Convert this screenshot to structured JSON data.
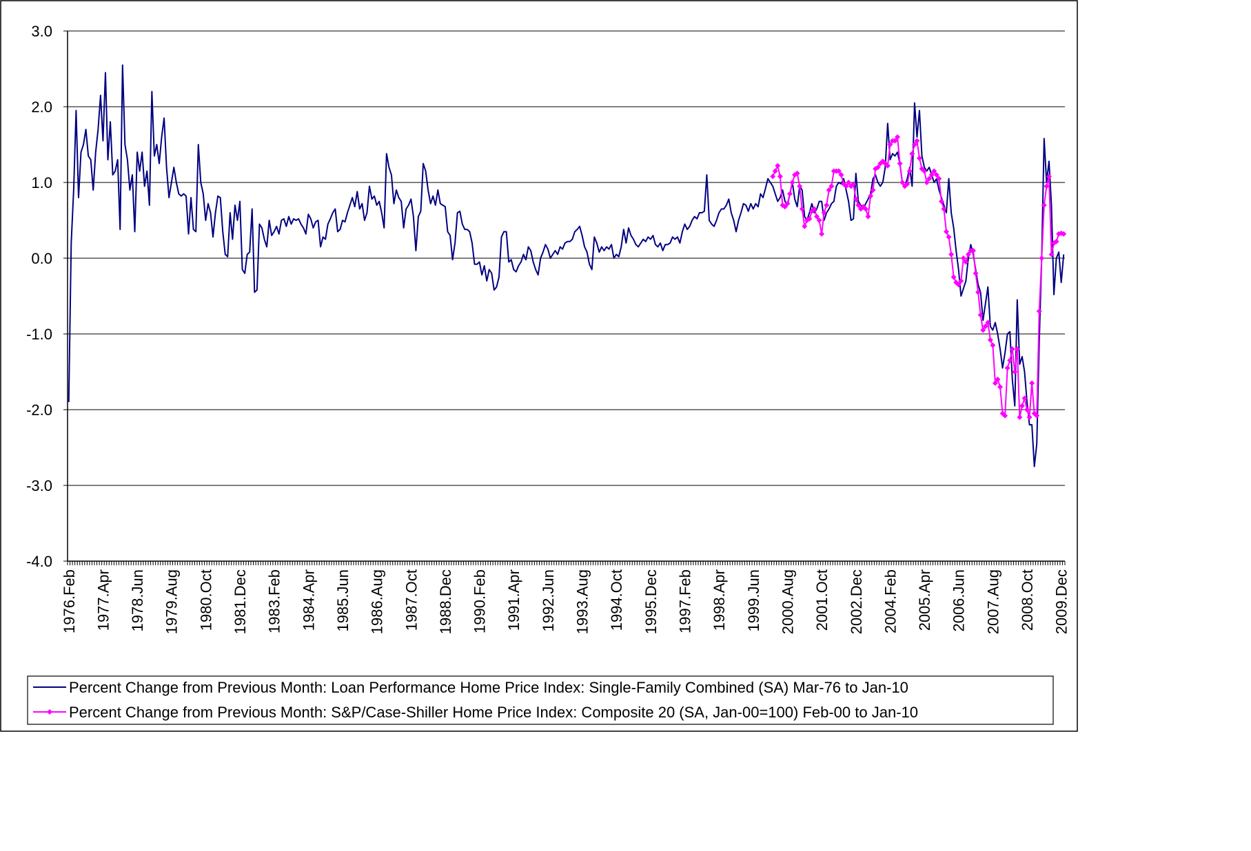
{
  "chart_data": {
    "type": "line",
    "categories": [
      "1976.Feb",
      null,
      null,
      null,
      null,
      null,
      null,
      null,
      null,
      null,
      null,
      null,
      null,
      null,
      "1977.Apr",
      null,
      null,
      null,
      null,
      null,
      null,
      null,
      null,
      null,
      null,
      null,
      null,
      null,
      "1978.Jun",
      null,
      null,
      null,
      null,
      null,
      null,
      null,
      null,
      null,
      null,
      null,
      null,
      null,
      "1979.Aug",
      null,
      null,
      null,
      null,
      null,
      null,
      null,
      null,
      null,
      null,
      null,
      null,
      null,
      "1980.Oct",
      null,
      null,
      null,
      null,
      null,
      null,
      null,
      null,
      null,
      null,
      null,
      null,
      null,
      "1981.Dec",
      null,
      null,
      null,
      null,
      null,
      null,
      null,
      null,
      null,
      null,
      null,
      null,
      null,
      "1983.Feb",
      null,
      null,
      null,
      null,
      null,
      null,
      null,
      null,
      null,
      null,
      null,
      null,
      null,
      "1984.Apr",
      null,
      null,
      null,
      null,
      null,
      null,
      null,
      null,
      null,
      null,
      null,
      null,
      null,
      "1985.Jun",
      null,
      null,
      null,
      null,
      null,
      null,
      null,
      null,
      null,
      null,
      null,
      null,
      null,
      "1986.Aug",
      null,
      null,
      null,
      null,
      null,
      null,
      null,
      null,
      null,
      null,
      null,
      null,
      null,
      "1987.Oct",
      null,
      null,
      null,
      null,
      null,
      null,
      null,
      null,
      null,
      null,
      null,
      null,
      null,
      "1988.Dec",
      null,
      null,
      null,
      null,
      null,
      null,
      null,
      null,
      null,
      null,
      null,
      null,
      null,
      "1990.Feb",
      null,
      null,
      null,
      null,
      null,
      null,
      null,
      null,
      null,
      null,
      null,
      null,
      null,
      "1991.Apr",
      null,
      null,
      null,
      null,
      null,
      null,
      null,
      null,
      null,
      null,
      null,
      null,
      null,
      "1992.Jun",
      null,
      null,
      null,
      null,
      null,
      null,
      null,
      null,
      null,
      null,
      null,
      null,
      null,
      "1993.Aug",
      null,
      null,
      null,
      null,
      null,
      null,
      null,
      null,
      null,
      null,
      null,
      null,
      null,
      "1994.Oct",
      null,
      null,
      null,
      null,
      null,
      null,
      null,
      null,
      null,
      null,
      null,
      null,
      null,
      "1995.Dec",
      null,
      null,
      null,
      null,
      null,
      null,
      null,
      null,
      null,
      null,
      null,
      null,
      null,
      "1997.Feb",
      null,
      null,
      null,
      null,
      null,
      null,
      null,
      null,
      null,
      null,
      null,
      null,
      null,
      "1998.Apr",
      null,
      null,
      null,
      null,
      null,
      null,
      null,
      null,
      null,
      null,
      null,
      null,
      null,
      "1999.Jun",
      null,
      null,
      null,
      null,
      null,
      null,
      null,
      null,
      null,
      null,
      null,
      null,
      null,
      "2000.Aug",
      null,
      null,
      null,
      null,
      null,
      null,
      null,
      null,
      null,
      null,
      null,
      null,
      null,
      "2001.Oct",
      null,
      null,
      null,
      null,
      null,
      null,
      null,
      null,
      null,
      null,
      null,
      null,
      null,
      "2002.Dec",
      null,
      null,
      null,
      null,
      null,
      null,
      null,
      null,
      null,
      null,
      null,
      null,
      null,
      "2004.Feb",
      null,
      null,
      null,
      null,
      null,
      null,
      null,
      null,
      null,
      null,
      null,
      null,
      null,
      "2005.Apr",
      null,
      null,
      null,
      null,
      null,
      null,
      null,
      null,
      null,
      null,
      null,
      null,
      null,
      "2006.Jun",
      null,
      null,
      null,
      null,
      null,
      null,
      null,
      null,
      null,
      null,
      null,
      null,
      null,
      "2007.Aug",
      null,
      null,
      null,
      null,
      null,
      null,
      null,
      null,
      null,
      null,
      null,
      null,
      null,
      "2008.Oct",
      null,
      null,
      null,
      null,
      null,
      null,
      null,
      null,
      null,
      null,
      null,
      null,
      null,
      "2009.Dec",
      null
    ],
    "series": [
      {
        "name": "Percent Change from Previous Month: Loan Performance Home Price Index: Single-Family Combined (SA) Mar-76 to Jan-10",
        "color": "#000080",
        "marker": false,
        "values": [
          -1.9,
          0.2,
          0.9,
          1.95,
          0.8,
          1.4,
          1.5,
          1.7,
          1.35,
          1.3,
          0.9,
          1.4,
          1.7,
          2.15,
          1.55,
          2.45,
          1.3,
          1.8,
          1.1,
          1.15,
          1.3,
          0.38,
          2.55,
          1.5,
          1.3,
          0.9,
          1.1,
          0.35,
          1.4,
          1.15,
          1.4,
          0.95,
          1.15,
          0.7,
          2.2,
          1.35,
          1.5,
          1.25,
          1.6,
          1.85,
          1.2,
          0.8,
          1.0,
          1.2,
          1.0,
          0.85,
          0.82,
          0.85,
          0.82,
          0.32,
          0.8,
          0.38,
          0.35,
          1.5,
          1.0,
          0.85,
          0.5,
          0.72,
          0.6,
          0.28,
          0.6,
          0.82,
          0.8,
          0.35,
          0.05,
          0.02,
          0.6,
          0.25,
          0.7,
          0.5,
          0.75,
          -0.15,
          -0.2,
          0.05,
          0.08,
          0.65,
          -0.45,
          -0.42,
          0.45,
          0.4,
          0.25,
          0.15,
          0.5,
          0.3,
          0.35,
          0.42,
          0.32,
          0.5,
          0.52,
          0.42,
          0.55,
          0.45,
          0.52,
          0.5,
          0.52,
          0.45,
          0.4,
          0.32,
          0.58,
          0.52,
          0.4,
          0.48,
          0.5,
          0.15,
          0.28,
          0.25,
          0.45,
          0.52,
          0.6,
          0.65,
          0.35,
          0.38,
          0.5,
          0.48,
          0.6,
          0.7,
          0.8,
          0.68,
          0.88,
          0.65,
          0.72,
          0.5,
          0.6,
          0.95,
          0.78,
          0.82,
          0.7,
          0.75,
          0.6,
          0.4,
          1.38,
          1.2,
          1.1,
          0.72,
          0.9,
          0.8,
          0.75,
          0.4,
          0.65,
          0.7,
          0.78,
          0.55,
          0.1,
          0.55,
          0.62,
          1.25,
          1.15,
          0.9,
          0.72,
          0.82,
          0.7,
          0.9,
          0.72,
          0.7,
          0.68,
          0.35,
          0.3,
          -0.02,
          0.2,
          0.6,
          0.62,
          0.45,
          0.38,
          0.38,
          0.35,
          0.2,
          -0.08,
          -0.08,
          -0.05,
          -0.22,
          -0.1,
          -0.3,
          -0.15,
          -0.2,
          -0.42,
          -0.38,
          -0.25,
          0.28,
          0.35,
          0.35,
          -0.05,
          -0.02,
          -0.15,
          -0.18,
          -0.1,
          -0.05,
          0.05,
          -0.02,
          0.15,
          0.1,
          -0.05,
          -0.15,
          -0.22,
          0.0,
          0.08,
          0.18,
          0.12,
          0.0,
          0.05,
          0.1,
          0.05,
          0.15,
          0.12,
          0.2,
          0.22,
          0.22,
          0.25,
          0.35,
          0.38,
          0.42,
          0.3,
          0.15,
          0.08,
          -0.08,
          -0.15,
          0.28,
          0.2,
          0.08,
          0.15,
          0.1,
          0.15,
          0.12,
          0.18,
          0.0,
          0.05,
          0.02,
          0.15,
          0.38,
          0.2,
          0.4,
          0.3,
          0.25,
          0.18,
          0.15,
          0.2,
          0.25,
          0.22,
          0.28,
          0.25,
          0.3,
          0.18,
          0.15,
          0.2,
          0.1,
          0.18,
          0.18,
          0.2,
          0.28,
          0.25,
          0.28,
          0.2,
          0.35,
          0.45,
          0.38,
          0.42,
          0.5,
          0.55,
          0.52,
          0.6,
          0.6,
          0.62,
          1.1,
          0.5,
          0.45,
          0.42,
          0.5,
          0.6,
          0.65,
          0.65,
          0.7,
          0.78,
          0.6,
          0.5,
          0.35,
          0.5,
          0.6,
          0.72,
          0.7,
          0.62,
          0.72,
          0.65,
          0.72,
          0.68,
          0.85,
          0.8,
          0.92,
          1.05,
          1.0,
          0.95,
          0.85,
          0.75,
          0.8,
          0.9,
          0.75,
          0.7,
          0.85,
          1.0,
          0.78,
          0.68,
          0.95,
          0.9,
          0.55,
          0.5,
          0.6,
          0.72,
          0.6,
          0.65,
          0.75,
          0.75,
          0.5,
          0.6,
          0.65,
          0.72,
          0.75,
          0.95,
          1.0,
          0.98,
          1.05,
          0.9,
          0.75,
          0.5,
          0.52,
          1.12,
          0.75,
          0.7,
          0.65,
          0.72,
          0.78,
          0.85,
          1.05,
          1.1,
          1.0,
          0.95,
          1.0,
          1.2,
          1.78,
          1.3,
          1.38,
          1.35,
          1.4,
          1.25,
          1.0,
          0.95,
          1.05,
          1.2,
          0.95,
          2.05,
          1.6,
          1.95,
          1.35,
          1.2,
          1.15,
          1.2,
          1.1,
          1.0,
          1.05,
          0.9,
          0.8,
          0.7,
          0.6,
          1.05,
          0.6,
          0.4,
          0.1,
          -0.15,
          -0.5,
          -0.4,
          -0.3,
          0.0,
          0.18,
          0.05,
          -0.15,
          -0.35,
          -0.45,
          -0.82,
          -0.6,
          -0.38,
          -0.9,
          -0.95,
          -0.85,
          -1.0,
          -1.2,
          -1.45,
          -1.25,
          -1.0,
          -0.97,
          -1.6,
          -1.95,
          -0.55,
          -1.4,
          -1.3,
          -1.5,
          -1.9,
          -2.2,
          -2.2,
          -2.75,
          -2.45,
          -1.1,
          0.0,
          1.58,
          1.0,
          1.28,
          0.7,
          -0.48,
          0.0,
          0.08,
          -0.32,
          0.05
        ]
      },
      {
        "name": "Percent Change from Previous Month: S&P/Case-Shiller Home Price Index: Composite 20 (SA, Jan-00=100) Feb-00 to Jan-10",
        "color": "#ff00ff",
        "marker": true,
        "values": [
          null,
          null,
          null,
          null,
          null,
          null,
          null,
          null,
          null,
          null,
          null,
          null,
          null,
          null,
          null,
          null,
          null,
          null,
          null,
          null,
          null,
          null,
          null,
          null,
          null,
          null,
          null,
          null,
          null,
          null,
          null,
          null,
          null,
          null,
          null,
          null,
          null,
          null,
          null,
          null,
          null,
          null,
          null,
          null,
          null,
          null,
          null,
          null,
          null,
          null,
          null,
          null,
          null,
          null,
          null,
          null,
          null,
          null,
          null,
          null,
          null,
          null,
          null,
          null,
          null,
          null,
          null,
          null,
          null,
          null,
          null,
          null,
          null,
          null,
          null,
          null,
          null,
          null,
          null,
          null,
          null,
          null,
          null,
          null,
          null,
          null,
          null,
          null,
          null,
          null,
          null,
          null,
          null,
          null,
          null,
          null,
          null,
          null,
          null,
          null,
          null,
          null,
          null,
          null,
          null,
          null,
          null,
          null,
          null,
          null,
          null,
          null,
          null,
          null,
          null,
          null,
          null,
          null,
          null,
          null,
          null,
          null,
          null,
          null,
          null,
          null,
          null,
          null,
          null,
          null,
          null,
          null,
          null,
          null,
          null,
          null,
          null,
          null,
          null,
          null,
          null,
          null,
          null,
          null,
          null,
          null,
          null,
          null,
          null,
          null,
          null,
          null,
          null,
          null,
          null,
          null,
          null,
          null,
          null,
          null,
          null,
          null,
          null,
          null,
          null,
          null,
          null,
          null,
          null,
          null,
          null,
          null,
          null,
          null,
          null,
          null,
          null,
          null,
          null,
          null,
          null,
          null,
          null,
          null,
          null,
          null,
          null,
          null,
          null,
          null,
          null,
          null,
          null,
          null,
          null,
          null,
          null,
          null,
          null,
          null,
          null,
          null,
          null,
          null,
          null,
          null,
          null,
          null,
          null,
          null,
          null,
          null,
          null,
          null,
          null,
          null,
          null,
          null,
          null,
          null,
          null,
          null,
          null,
          null,
          null,
          null,
          null,
          null,
          null,
          null,
          null,
          null,
          null,
          null,
          null,
          null,
          null,
          null,
          null,
          null,
          null,
          null,
          null,
          null,
          null,
          null,
          null,
          null,
          null,
          null,
          null,
          null,
          null,
          null,
          null,
          null,
          null,
          null,
          null,
          null,
          null,
          null,
          null,
          null,
          null,
          null,
          null,
          null,
          null,
          null,
          null,
          null,
          null,
          null,
          null,
          null,
          null,
          null,
          null,
          null,
          null,
          null,
          null,
          null,
          null,
          null,
          null,
          null,
          1.08,
          1.15,
          1.22,
          1.08,
          0.7,
          0.68,
          0.72,
          0.85,
          1.0,
          1.1,
          1.12,
          0.95,
          0.65,
          0.42,
          0.5,
          0.52,
          0.62,
          0.65,
          0.55,
          0.5,
          0.32,
          0.6,
          0.7,
          0.9,
          0.95,
          1.15,
          1.15,
          1.15,
          1.1,
          0.98,
          0.95,
          1.0,
          0.95,
          0.98,
          0.78,
          0.7,
          0.65,
          0.68,
          0.65,
          0.55,
          0.82,
          0.9,
          1.18,
          1.2,
          1.25,
          1.28,
          1.25,
          1.22,
          1.5,
          1.55,
          1.55,
          1.6,
          1.25,
          1.0,
          0.95,
          0.98,
          1.15,
          1.38,
          1.5,
          1.55,
          1.32,
          1.18,
          1.15,
          1.0,
          1.05,
          1.1,
          1.15,
          1.1,
          1.05,
          0.75,
          0.65,
          0.35,
          0.28,
          0.05,
          -0.25,
          -0.32,
          -0.35,
          -0.3,
          0.0,
          -0.05,
          0.05,
          0.1,
          0.1,
          -0.2,
          -0.45,
          -0.75,
          -0.95,
          -0.9,
          -0.85,
          -1.08,
          -1.15,
          -1.65,
          -1.6,
          -1.7,
          -2.05,
          -2.08,
          -1.45,
          -1.35,
          -1.2,
          -1.5,
          -1.2,
          -2.1,
          -1.95,
          -1.85,
          -2.0,
          -2.1,
          -1.65,
          -2.05,
          -2.08,
          -0.7,
          0.0,
          0.7,
          0.95,
          1.08,
          0.05,
          0.2,
          0.22,
          0.32,
          0.33,
          0.32
        ]
      }
    ],
    "ylim": [
      -4,
      3
    ],
    "yticks": [
      {
        "value": -4,
        "label": "-4.0"
      },
      {
        "value": -3,
        "label": "-3.0"
      },
      {
        "value": -2,
        "label": "-2.0"
      },
      {
        "value": -1,
        "label": "-1.0"
      },
      {
        "value": 0,
        "label": "0.0"
      },
      {
        "value": 1,
        "label": "1.0"
      },
      {
        "value": 2,
        "label": "2.0"
      },
      {
        "value": 3,
        "label": "3.0"
      }
    ],
    "grid": true,
    "legend": "bottom"
  }
}
